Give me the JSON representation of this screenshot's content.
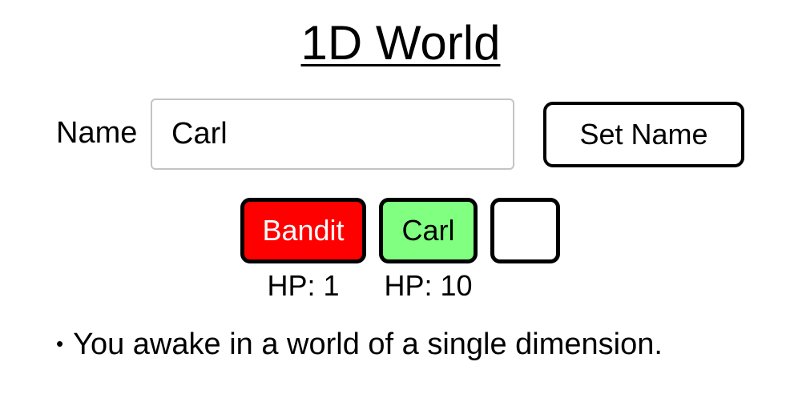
{
  "title": "1D World",
  "name_form": {
    "label": "Name",
    "input_value": "Carl",
    "button_label": "Set Name"
  },
  "world": {
    "cells": [
      {
        "occupant": "Bandit",
        "color": "#ff0000",
        "hp_text": "HP: 1"
      },
      {
        "occupant": "Carl",
        "color": "#80ff80",
        "hp_text": "HP: 10"
      },
      {
        "occupant": "",
        "color": "#ffffff",
        "hp_text": ""
      }
    ]
  },
  "log": {
    "bullet": "•",
    "messages": [
      "You awake in a world of a single dimension."
    ]
  }
}
